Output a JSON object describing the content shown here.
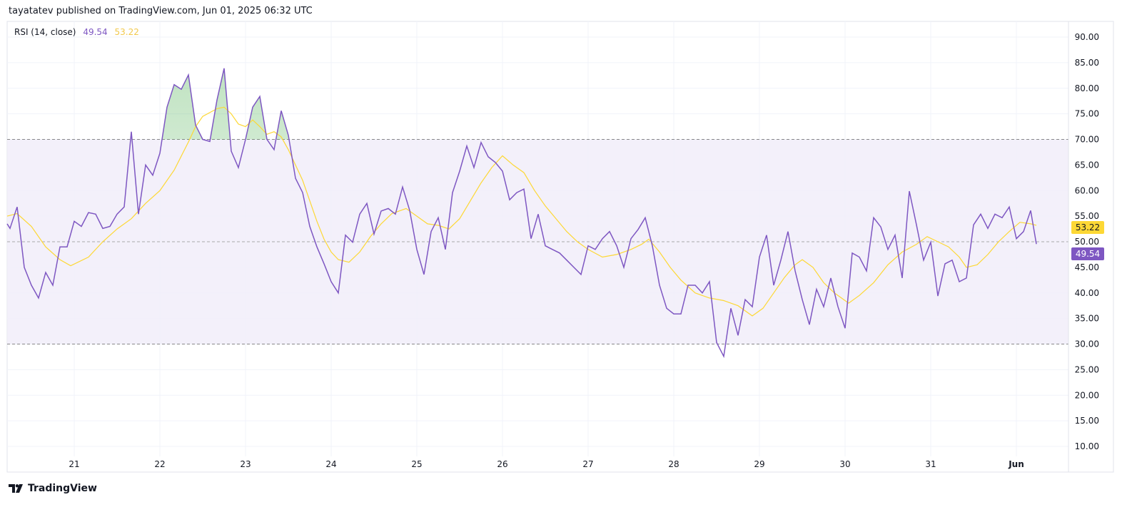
{
  "header": {
    "text": "tayatatev published on TradingView.com, Jun 01, 2025 06:32 UTC"
  },
  "legend": {
    "name": "RSI (14, close)",
    "rsi_value": "49.54",
    "ma_value": "53.22"
  },
  "footer": {
    "brand": "TradingView"
  },
  "colors": {
    "rsi": "#7e57c2",
    "ma": "#fdd835",
    "band": "#f1edf9",
    "overbought_fill": "#4caf50"
  },
  "chart_data": {
    "type": "line",
    "title": "RSI (14, close)",
    "x_unit": "hours since May 21 00:00 UTC",
    "ylim": [
      7,
      93
    ],
    "y_ticks": [
      "10.00",
      "15.00",
      "20.00",
      "25.00",
      "30.00",
      "35.00",
      "40.00",
      "45.00",
      "50.00",
      "55.00",
      "60.00",
      "65.00",
      "70.00",
      "75.00",
      "80.00",
      "85.00",
      "90.00"
    ],
    "x_ticks": [
      {
        "h": 0,
        "label": "21"
      },
      {
        "h": 24,
        "label": "22"
      },
      {
        "h": 48,
        "label": "23"
      },
      {
        "h": 72,
        "label": "24"
      },
      {
        "h": 96,
        "label": "25"
      },
      {
        "h": 120,
        "label": "26"
      },
      {
        "h": 144,
        "label": "27"
      },
      {
        "h": 168,
        "label": "28"
      },
      {
        "h": 192,
        "label": "29"
      },
      {
        "h": 216,
        "label": "30"
      },
      {
        "h": 240,
        "label": "31"
      },
      {
        "h": 264,
        "label": "Jun"
      }
    ],
    "bands": {
      "upper": 70,
      "middle": 50,
      "lower": 30
    },
    "grid": true,
    "last_labels": {
      "ma": "53.22",
      "rsi": "49.54"
    },
    "series": [
      {
        "name": "RSI",
        "points": [
          [
            -18.8,
            53.5
          ],
          [
            -18,
            52.6
          ],
          [
            -16,
            56.8
          ],
          [
            -14,
            45
          ],
          [
            -12,
            41.5
          ],
          [
            -10,
            39
          ],
          [
            -8,
            44
          ],
          [
            -6,
            41.5
          ],
          [
            -4,
            49
          ],
          [
            -2,
            49
          ],
          [
            0,
            54
          ],
          [
            2,
            53
          ],
          [
            4,
            55.7
          ],
          [
            6,
            55.4
          ],
          [
            8,
            52.6
          ],
          [
            10,
            53
          ],
          [
            12,
            55.4
          ],
          [
            14,
            56.8
          ],
          [
            16,
            71.5
          ],
          [
            18,
            55.4
          ],
          [
            20,
            65
          ],
          [
            22,
            63
          ],
          [
            24,
            67.3
          ],
          [
            26,
            76.3
          ],
          [
            28,
            80.7
          ],
          [
            30,
            79.8
          ],
          [
            32,
            82.6
          ],
          [
            34,
            72.8
          ],
          [
            36,
            70
          ],
          [
            38,
            69.6
          ],
          [
            40,
            77.7
          ],
          [
            42,
            83.9
          ],
          [
            44,
            67.7
          ],
          [
            46,
            64.5
          ],
          [
            48,
            70
          ],
          [
            50,
            76.3
          ],
          [
            52,
            78.4
          ],
          [
            54,
            70
          ],
          [
            56,
            68
          ],
          [
            58,
            75.6
          ],
          [
            60,
            70.8
          ],
          [
            62,
            62.4
          ],
          [
            64,
            59.6
          ],
          [
            66,
            53
          ],
          [
            68,
            49
          ],
          [
            70,
            45.7
          ],
          [
            72,
            42.2
          ],
          [
            74,
            40
          ],
          [
            76,
            51.3
          ],
          [
            78,
            49.9
          ],
          [
            80,
            55.4
          ],
          [
            82,
            57.5
          ],
          [
            84,
            51.5
          ],
          [
            86,
            56
          ],
          [
            88,
            56.5
          ],
          [
            90,
            55.4
          ],
          [
            92,
            60.7
          ],
          [
            94,
            56.1
          ],
          [
            96,
            48.5
          ],
          [
            98,
            43.6
          ],
          [
            100,
            52
          ],
          [
            102,
            54.7
          ],
          [
            104,
            48.5
          ],
          [
            106,
            59.6
          ],
          [
            108,
            63.8
          ],
          [
            110,
            68.7
          ],
          [
            112,
            64.5
          ],
          [
            114,
            69.4
          ],
          [
            116,
            66.6
          ],
          [
            118,
            65.5
          ],
          [
            120,
            63.8
          ],
          [
            122,
            58.2
          ],
          [
            124,
            59.6
          ],
          [
            126,
            60.3
          ],
          [
            128,
            50.6
          ],
          [
            130,
            55.4
          ],
          [
            132,
            49.2
          ],
          [
            134,
            48.5
          ],
          [
            136,
            47.8
          ],
          [
            138,
            46.4
          ],
          [
            140,
            45
          ],
          [
            142,
            43.6
          ],
          [
            144,
            49.2
          ],
          [
            146,
            48.5
          ],
          [
            148,
            50.6
          ],
          [
            150,
            52
          ],
          [
            152,
            49.2
          ],
          [
            154,
            45
          ],
          [
            156,
            50.6
          ],
          [
            158,
            52.4
          ],
          [
            160,
            54.7
          ],
          [
            162,
            49.2
          ],
          [
            164,
            41.5
          ],
          [
            166,
            37
          ],
          [
            168,
            35.9
          ],
          [
            170,
            35.9
          ],
          [
            172,
            41.5
          ],
          [
            174,
            41.5
          ],
          [
            176,
            40
          ],
          [
            178,
            42.2
          ],
          [
            180,
            30.3
          ],
          [
            182,
            27.6
          ],
          [
            184,
            37
          ],
          [
            186,
            31.7
          ],
          [
            188,
            38.7
          ],
          [
            190,
            37.3
          ],
          [
            192,
            47
          ],
          [
            194,
            51.3
          ],
          [
            196,
            41.5
          ],
          [
            198,
            46.4
          ],
          [
            200,
            52
          ],
          [
            202,
            44.3
          ],
          [
            204,
            38.7
          ],
          [
            206,
            33.8
          ],
          [
            208,
            40.7
          ],
          [
            210,
            37.3
          ],
          [
            212,
            42.9
          ],
          [
            214,
            37.3
          ],
          [
            216,
            33.1
          ],
          [
            218,
            47.8
          ],
          [
            220,
            47
          ],
          [
            222,
            44.3
          ],
          [
            224,
            54.7
          ],
          [
            226,
            52.9
          ],
          [
            228,
            48.5
          ],
          [
            230,
            51.3
          ],
          [
            232,
            42.9
          ],
          [
            234,
            59.9
          ],
          [
            236,
            53.3
          ],
          [
            238,
            46.4
          ],
          [
            240,
            49.9
          ],
          [
            242,
            39.4
          ],
          [
            244,
            45.7
          ],
          [
            246,
            46.4
          ],
          [
            248,
            42.2
          ],
          [
            250,
            42.9
          ],
          [
            252,
            53.3
          ],
          [
            254,
            55.4
          ],
          [
            256,
            52.6
          ],
          [
            258,
            55.4
          ],
          [
            260,
            54.7
          ],
          [
            262,
            56.8
          ],
          [
            264,
            50.6
          ],
          [
            266,
            52
          ],
          [
            268,
            56.1
          ],
          [
            269.6,
            49.54
          ]
        ]
      },
      {
        "name": "RSI-based MA",
        "points": [
          [
            -18.8,
            55
          ],
          [
            -16,
            55.5
          ],
          [
            -12,
            53
          ],
          [
            -8,
            49
          ],
          [
            -4,
            46.5
          ],
          [
            -1,
            45.3
          ],
          [
            4,
            47
          ],
          [
            8,
            50
          ],
          [
            12,
            52.5
          ],
          [
            16,
            54.5
          ],
          [
            20,
            57.5
          ],
          [
            24,
            60
          ],
          [
            28,
            64
          ],
          [
            32,
            69.5
          ],
          [
            34,
            72.5
          ],
          [
            36,
            74.5
          ],
          [
            40,
            76
          ],
          [
            42,
            76.3
          ],
          [
            44,
            75
          ],
          [
            46,
            73
          ],
          [
            48,
            72.5
          ],
          [
            50,
            73.8
          ],
          [
            52,
            72.5
          ],
          [
            54,
            71
          ],
          [
            56,
            71.5
          ],
          [
            58,
            70.5
          ],
          [
            60,
            68
          ],
          [
            62,
            65
          ],
          [
            64,
            62
          ],
          [
            66,
            58
          ],
          [
            68,
            54
          ],
          [
            70,
            50.5
          ],
          [
            72,
            48
          ],
          [
            74,
            46.5
          ],
          [
            77,
            46
          ],
          [
            80,
            48
          ],
          [
            83,
            51
          ],
          [
            86,
            53.5
          ],
          [
            89,
            55.5
          ],
          [
            93,
            56.5
          ],
          [
            96,
            55
          ],
          [
            99,
            53.5
          ],
          [
            102,
            53.2
          ],
          [
            105,
            52.5
          ],
          [
            108,
            54.5
          ],
          [
            111,
            58
          ],
          [
            114,
            61.5
          ],
          [
            117,
            64.5
          ],
          [
            120,
            66.8
          ],
          [
            123,
            65
          ],
          [
            126,
            63.5
          ],
          [
            129,
            60
          ],
          [
            132,
            57
          ],
          [
            135,
            54.5
          ],
          [
            138,
            52
          ],
          [
            141,
            50
          ],
          [
            144,
            48.5
          ],
          [
            148,
            47
          ],
          [
            152,
            47.5
          ],
          [
            156,
            48.5
          ],
          [
            159,
            49.5
          ],
          [
            161,
            50.5
          ],
          [
            164,
            48
          ],
          [
            167,
            45
          ],
          [
            170,
            42.5
          ],
          [
            174,
            40
          ],
          [
            178,
            39
          ],
          [
            182,
            38.5
          ],
          [
            186,
            37.5
          ],
          [
            190,
            35.5
          ],
          [
            193,
            37
          ],
          [
            196,
            40
          ],
          [
            199,
            43
          ],
          [
            202,
            45.5
          ],
          [
            204,
            46.5
          ],
          [
            207,
            45
          ],
          [
            210,
            42
          ],
          [
            213,
            40
          ],
          [
            217,
            38
          ],
          [
            220,
            39.5
          ],
          [
            224,
            42
          ],
          [
            228,
            45.5
          ],
          [
            232,
            48
          ],
          [
            236,
            49.5
          ],
          [
            239,
            51
          ],
          [
            242,
            50
          ],
          [
            245,
            49
          ],
          [
            248,
            47
          ],
          [
            250,
            45
          ],
          [
            253,
            45.5
          ],
          [
            256,
            47.5
          ],
          [
            259,
            50
          ],
          [
            262,
            52
          ],
          [
            265,
            53.8
          ],
          [
            268,
            53.5
          ],
          [
            269.6,
            53.22
          ]
        ]
      }
    ]
  }
}
